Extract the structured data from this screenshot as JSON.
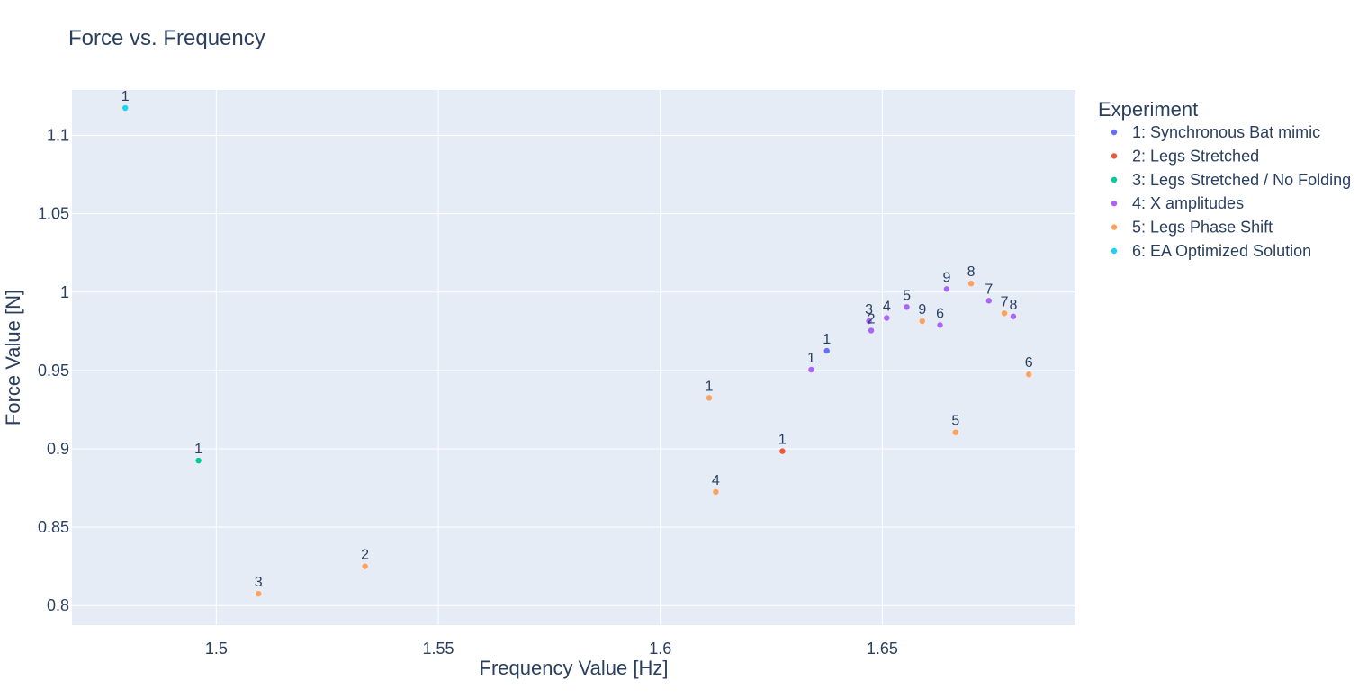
{
  "chart_data": {
    "type": "scatter",
    "title": "Force vs. Frequency",
    "xlabel": "Frequency Value [Hz]",
    "ylabel": "Force Value [N]",
    "xlim": [
      1.4675,
      1.6935
    ],
    "ylim": [
      0.7875,
      1.129
    ],
    "x_ticks": [
      1.5,
      1.55,
      1.6,
      1.65
    ],
    "x_tick_labels": [
      "1.5",
      "1.55",
      "1.6",
      "1.65"
    ],
    "y_ticks": [
      0.8,
      0.85,
      0.9,
      0.95,
      1.0,
      1.05,
      1.1
    ],
    "y_tick_labels": [
      "0.8",
      "0.85",
      "0.9",
      "0.95",
      "1",
      "1.05",
      "1.1"
    ],
    "grid": true,
    "background": "#e5ecf6",
    "legend": {
      "title": "Experiment",
      "position": "right"
    },
    "series": [
      {
        "name": "1: Synchronous Bat mimic",
        "color": "#636efa",
        "points": [
          {
            "x": 1.6375,
            "y": 0.9625,
            "label": "1"
          }
        ]
      },
      {
        "name": "2: Legs Stretched",
        "color": "#ef553b",
        "points": [
          {
            "x": 1.6275,
            "y": 0.8985,
            "label": "1"
          }
        ]
      },
      {
        "name": "3: Legs Stretched / No Folding",
        "color": "#00cc96",
        "points": [
          {
            "x": 1.496,
            "y": 0.8925,
            "label": "1"
          }
        ]
      },
      {
        "name": "4: X amplitudes",
        "color": "#ab63fa",
        "points": [
          {
            "x": 1.634,
            "y": 0.9505,
            "label": "1"
          },
          {
            "x": 1.6475,
            "y": 0.9755,
            "label": "2"
          },
          {
            "x": 1.647,
            "y": 0.9815,
            "label": "3"
          },
          {
            "x": 1.651,
            "y": 0.9835,
            "label": "4"
          },
          {
            "x": 1.6555,
            "y": 0.9905,
            "label": "5"
          },
          {
            "x": 1.663,
            "y": 0.979,
            "label": "6"
          },
          {
            "x": 1.674,
            "y": 0.9945,
            "label": "7"
          },
          {
            "x": 1.6795,
            "y": 0.9845,
            "label": "8"
          },
          {
            "x": 1.6645,
            "y": 1.002,
            "label": "9"
          }
        ]
      },
      {
        "name": "5: Legs Phase Shift",
        "color": "#ffa15a",
        "points": [
          {
            "x": 1.611,
            "y": 0.9325,
            "label": "1"
          },
          {
            "x": 1.5335,
            "y": 0.825,
            "label": "2"
          },
          {
            "x": 1.5095,
            "y": 0.8075,
            "label": "3"
          },
          {
            "x": 1.6125,
            "y": 0.8725,
            "label": "4"
          },
          {
            "x": 1.6665,
            "y": 0.9105,
            "label": "5"
          },
          {
            "x": 1.683,
            "y": 0.9475,
            "label": "6"
          },
          {
            "x": 1.6775,
            "y": 0.9865,
            "label": "7"
          },
          {
            "x": 1.67,
            "y": 1.0055,
            "label": "8"
          },
          {
            "x": 1.659,
            "y": 0.9815,
            "label": "9"
          }
        ]
      },
      {
        "name": "6: EA Optimized Solution",
        "color": "#19d3f3",
        "points": [
          {
            "x": 1.4795,
            "y": 1.1175,
            "label": "1"
          }
        ]
      }
    ]
  }
}
